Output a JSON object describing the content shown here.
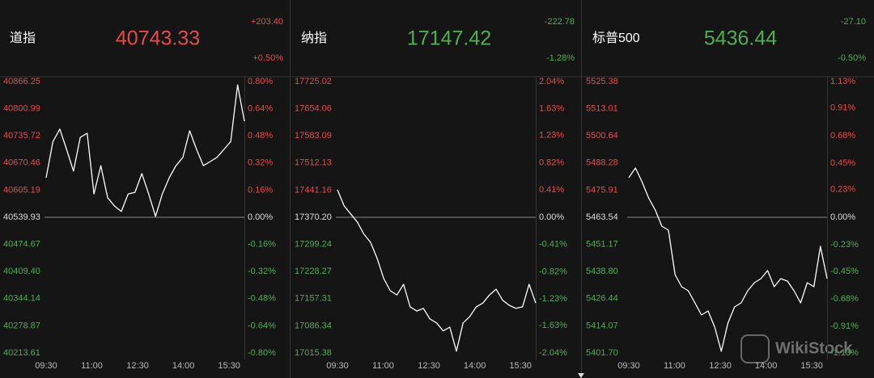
{
  "chart_data": [
    {
      "type": "line",
      "title": "道指",
      "price": 40743.33,
      "change": "+203.40",
      "change_pct": "+0.50%",
      "color": "#e84a4a",
      "up_color": "#e84a4a",
      "down_color": "#4caf50",
      "line_color": "#ffffff",
      "ylim": [
        40213.61,
        40866.25
      ],
      "y2lim": [
        -0.8,
        0.8
      ],
      "yticks": [
        40866.25,
        40800.99,
        40735.72,
        40670.46,
        40605.19,
        40539.93,
        40474.67,
        {
          "value": 40409.4,
          "label": "40409.40"
        },
        40344.14,
        40278.87,
        40213.61
      ],
      "y2ticks": [
        {
          "value": 0.8,
          "label": "0.80%"
        },
        {
          "value": 0.64,
          "label": "0.64%"
        },
        {
          "value": 0.48,
          "label": "0.48%"
        },
        {
          "value": 0.32,
          "label": "0.32%"
        },
        {
          "value": 0.16,
          "label": "0.16%"
        },
        {
          "value": 0,
          "label": "0.00%"
        },
        {
          "value": -0.16,
          "label": "-0.16%"
        },
        {
          "value": -0.32,
          "label": "-0.32%"
        },
        {
          "value": -0.48,
          "label": "-0.48%"
        },
        {
          "value": -0.64,
          "label": "-0.64%"
        },
        {
          "value": -0.8,
          "label": "-0.80%"
        }
      ],
      "xticks": [
        "09:30",
        "11:00",
        "12:30",
        "14:00",
        "15:30"
      ],
      "values": [
        40635,
        40722,
        40752,
        40703,
        40651,
        40732,
        40742,
        40596,
        40664,
        40587,
        40567,
        40554,
        40596,
        40600,
        40645,
        40596,
        40542,
        40596,
        40635,
        40664,
        40684,
        40748,
        40703,
        40664,
        40674,
        40684,
        40703,
        40722,
        40858,
        40771
      ]
    },
    {
      "type": "line",
      "title": "纳指",
      "price": 17147.42,
      "change": "-222.78",
      "change_pct": "-1.28%",
      "color": "#4caf50",
      "up_color": "#e84a4a",
      "down_color": "#4caf50",
      "line_color": "#ffffff",
      "ylim": [
        17015.38,
        17725.02
      ],
      "y2lim": [
        -2.04,
        2.04
      ],
      "yticks": [
        17725.02,
        17654.06,
        17583.09,
        17512.13,
        17441.16,
        {
          "value": 17370.2,
          "label": "17370.20"
        },
        17299.24,
        17228.27,
        17157.31,
        17086.34,
        17015.38
      ],
      "y2ticks": [
        {
          "value": 2.04,
          "label": "2.04%"
        },
        {
          "value": 1.63,
          "label": "1.63%"
        },
        {
          "value": 1.23,
          "label": "1.23%"
        },
        {
          "value": 0.82,
          "label": "0.82%"
        },
        {
          "value": 0.41,
          "label": "0.41%"
        },
        {
          "value": 0,
          "label": "0.00%"
        },
        {
          "value": -0.41,
          "label": "-0.41%"
        },
        {
          "value": -0.82,
          "label": "-0.82%"
        },
        {
          "value": -1.23,
          "label": "-1.23%"
        },
        {
          "value": -1.63,
          "label": "-1.63%"
        },
        {
          "value": -2.04,
          "label": "-2.04%"
        }
      ],
      "xticks": [
        "09:30",
        "11:00",
        "12:30",
        "14:00",
        "15:30"
      ],
      "values": [
        17442,
        17400,
        17379,
        17358,
        17326,
        17305,
        17263,
        17210,
        17178,
        17167,
        17195,
        17136,
        17125,
        17132,
        17104,
        17094,
        17073,
        17083,
        17020,
        17094,
        17110,
        17136,
        17146,
        17167,
        17182,
        17153,
        17140,
        17132,
        17136,
        17195,
        17146
      ]
    },
    {
      "type": "line",
      "title": "标普500",
      "price": 5436.44,
      "change": "-27.10",
      "change_pct": "-0.50%",
      "color": "#4caf50",
      "up_color": "#e84a4a",
      "down_color": "#4caf50",
      "line_color": "#ffffff",
      "ylim": [
        5401.7,
        5525.38
      ],
      "y2lim": [
        -1.13,
        1.13
      ],
      "yticks": [
        5525.38,
        5513.01,
        5500.64,
        5488.28,
        5475.91,
        5463.54,
        5451.17,
        {
          "value": 5438.8,
          "label": "5438.80"
        },
        5426.44,
        5414.07,
        {
          "value": 5401.7,
          "label": "5401.70"
        }
      ],
      "y2ticks": [
        {
          "value": 1.13,
          "label": "1.13%"
        },
        {
          "value": 0.91,
          "label": "0.91%"
        },
        {
          "value": 0.68,
          "label": "0.68%"
        },
        {
          "value": 0.45,
          "label": "0.45%"
        },
        {
          "value": 0.23,
          "label": "0.23%"
        },
        {
          "value": 0,
          "label": "0.00%"
        },
        {
          "value": -0.23,
          "label": "-0.23%"
        },
        {
          "value": -0.45,
          "label": "-0.45%"
        },
        {
          "value": -0.68,
          "label": "-0.68%"
        },
        {
          "value": -0.91,
          "label": "-0.91%"
        },
        {
          "value": -1.13,
          "label": "-1.13%"
        }
      ],
      "xticks": [
        "09:30",
        "11:00",
        "12:30",
        "14:00",
        "15:30"
      ],
      "values": [
        5481.58,
        5485.99,
        5479.74,
        5472.37,
        5466.85,
        5459.49,
        5457.65,
        5437.4,
        5431.88,
        5430.04,
        5424.52,
        5418.99,
        5420.83,
        5413.47,
        5402.43,
        5415.31,
        5422.68,
        5424.52,
        5430.04,
        5433.72,
        5435.56,
        5439.24,
        5431.88,
        5435.56,
        5434.46,
        5430.04,
        5424.52,
        5433.72,
        5431.88,
        5450.29,
        5435.56
      ]
    }
  ],
  "watermark": "WikiStock"
}
